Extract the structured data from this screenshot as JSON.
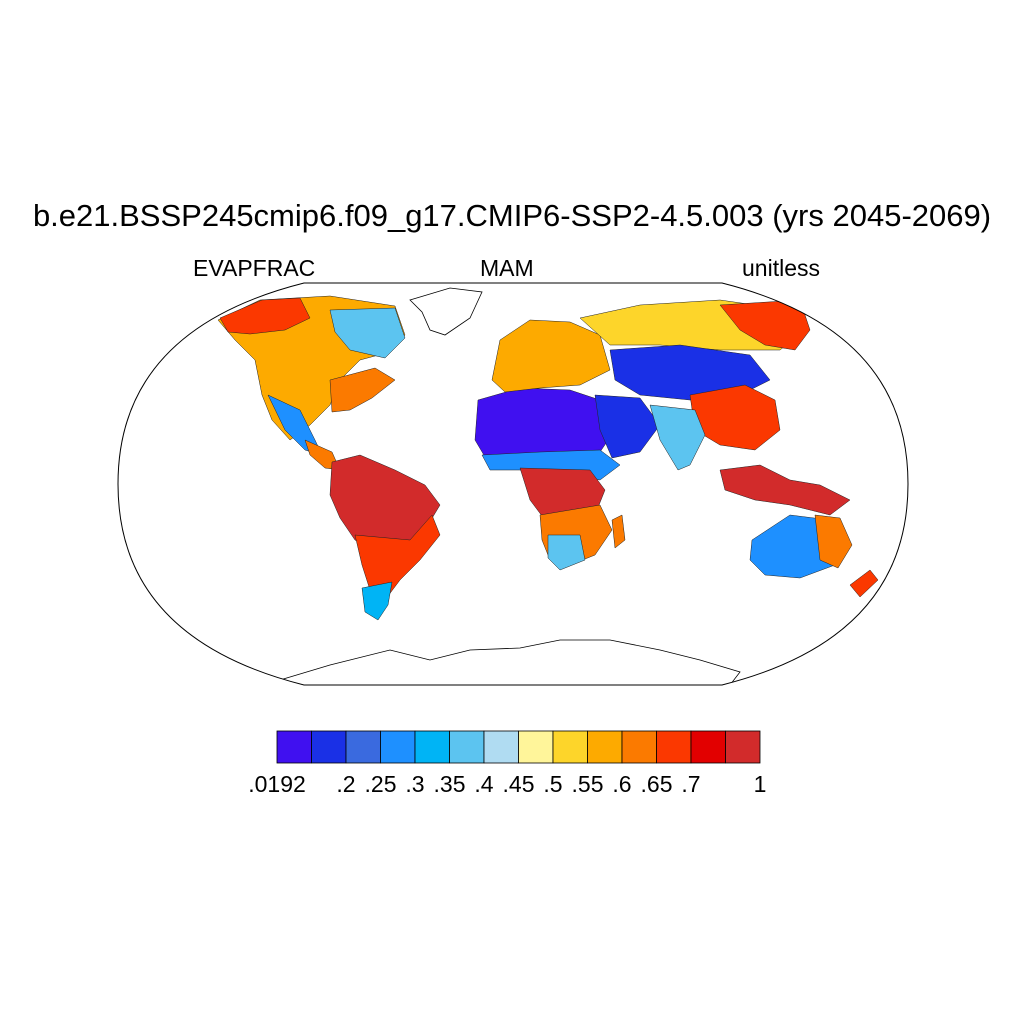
{
  "title": "b.e21.BSSP245cmip6.f09_g17.CMIP6-SSP2-4.5.003 (yrs 2045-2069)",
  "subtitle_left": "EVAPFRAC",
  "subtitle_center": "MAM",
  "subtitle_right": "unitless",
  "colorbar": {
    "colors": [
      "#4010f0",
      "#1a30e6",
      "#3a6adf",
      "#1e90ff",
      "#00b4f5",
      "#5cc4f0",
      "#b0dcf2",
      "#fff59a",
      "#fdd52a",
      "#fdaa00",
      "#fb7a00",
      "#fb3800",
      "#e20000",
      "#d22b2b"
    ],
    "labels": [
      ".0192",
      ".2",
      ".25",
      ".3",
      ".35",
      ".4",
      ".45",
      ".5",
      ".55",
      ".6",
      ".65",
      ".7",
      "1"
    ]
  },
  "regions": [
    {
      "name": "north-america-west",
      "color": "#fdaa00"
    },
    {
      "name": "canada-north",
      "color": "#fb3800"
    },
    {
      "name": "hudson-region",
      "color": "#5cc4f0"
    },
    {
      "name": "eastern-us",
      "color": "#fb7a00"
    },
    {
      "name": "mexico",
      "color": "#1e90ff"
    },
    {
      "name": "central-america",
      "color": "#fb7a00"
    },
    {
      "name": "amazon",
      "color": "#d22b2b"
    },
    {
      "name": "south-america-south",
      "color": "#fb3800"
    },
    {
      "name": "patagonia",
      "color": "#00b4f5"
    },
    {
      "name": "sahara",
      "color": "#4010f0"
    },
    {
      "name": "arabia",
      "color": "#1a30e6"
    },
    {
      "name": "sahel",
      "color": "#1e90ff"
    },
    {
      "name": "central-africa",
      "color": "#d22b2b"
    },
    {
      "name": "southern-africa",
      "color": "#fb7a00"
    },
    {
      "name": "kalahari",
      "color": "#5cc4f0"
    },
    {
      "name": "europe",
      "color": "#fdaa00"
    },
    {
      "name": "russia",
      "color": "#fdd52a"
    },
    {
      "name": "central-asia",
      "color": "#1a30e6"
    },
    {
      "name": "siberia-east",
      "color": "#fb3800"
    },
    {
      "name": "china",
      "color": "#fb3800"
    },
    {
      "name": "india",
      "color": "#5cc4f0"
    },
    {
      "name": "southeast-asia",
      "color": "#d22b2b"
    },
    {
      "name": "australia-interior",
      "color": "#1e90ff"
    },
    {
      "name": "australia-east",
      "color": "#fb7a00"
    },
    {
      "name": "new-zealand",
      "color": "#fb3800"
    },
    {
      "name": "madagascar",
      "color": "#fb7a00"
    }
  ]
}
